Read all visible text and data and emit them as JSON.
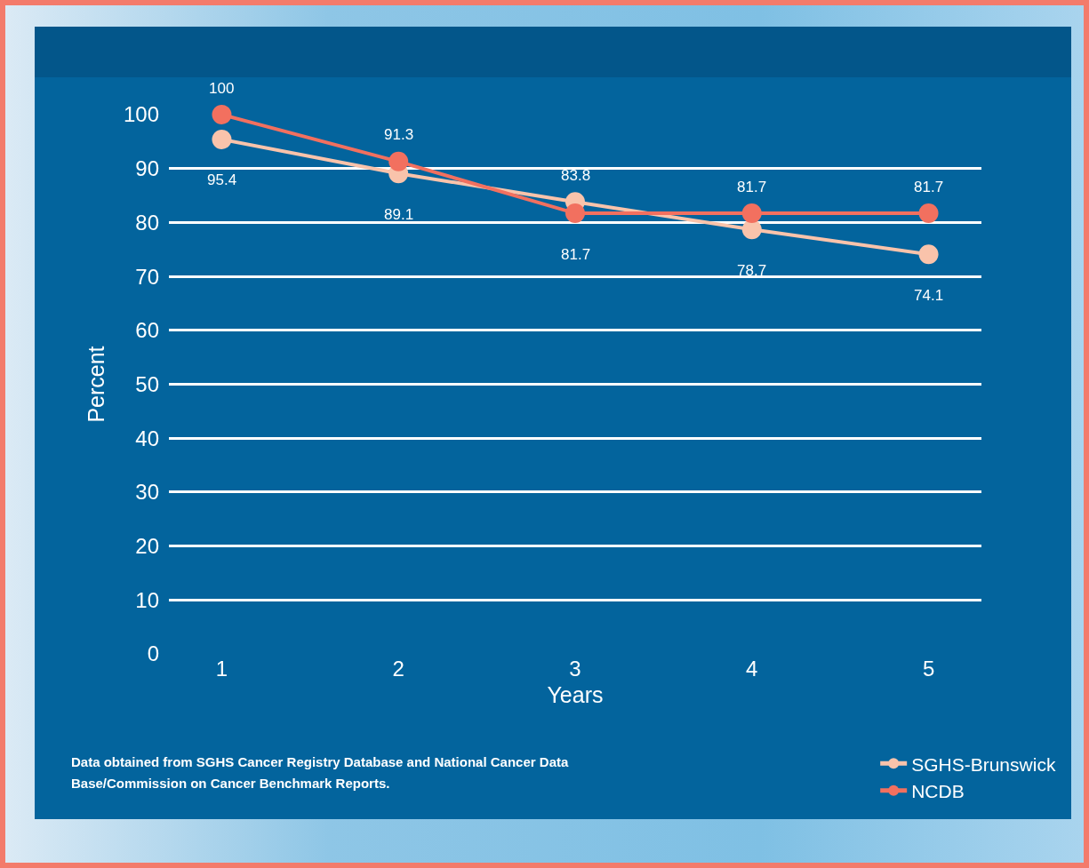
{
  "chart_data": {
    "type": "line",
    "xlabel": "Years",
    "ylabel": "Percent",
    "categories": [
      "1",
      "2",
      "3",
      "4",
      "5"
    ],
    "series": [
      {
        "name": "SGHS-Brunswick",
        "color": "#f9c3ab",
        "values": [
          95.4,
          89.1,
          83.8,
          78.7,
          74.1
        ]
      },
      {
        "name": "NCDB",
        "color": "#f2705f",
        "values": [
          100,
          91.3,
          81.7,
          81.7,
          81.7
        ]
      }
    ],
    "ylim": [
      0,
      100
    ],
    "yticks": [
      0,
      10,
      20,
      30,
      40,
      50,
      60,
      70,
      80,
      90,
      100
    ],
    "grid": "y",
    "legend": "bottom right",
    "marker": "circle",
    "line_style": "solid",
    "data_labels": true,
    "annotations": [
      "Data obtained from SGHS Cancer Registry Database and National Cancer Data Base/Commission on Cancer Benchmark Reports."
    ]
  }
}
